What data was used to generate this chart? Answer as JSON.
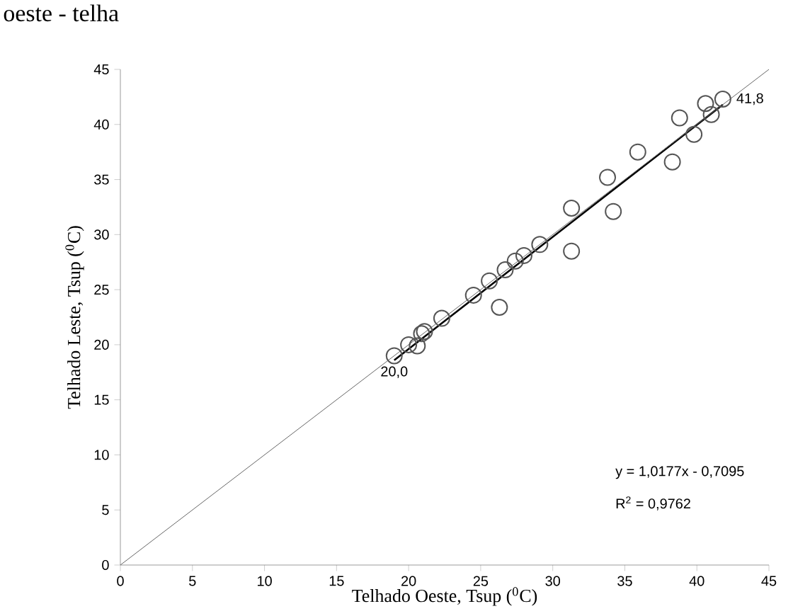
{
  "chart_data": {
    "type": "scatter",
    "title": "oeste - telha",
    "xlabel": "Telhado Oeste, Tsup ($^{0}$C)",
    "ylabel": "Telhado Leste, Tsup ($^{0}$C)",
    "xlim": [
      0,
      45
    ],
    "ylim": [
      0,
      45
    ],
    "xticks": [
      0,
      5,
      10,
      15,
      20,
      25,
      30,
      35,
      40,
      45
    ],
    "yticks": [
      0,
      5,
      10,
      15,
      20,
      25,
      30,
      35,
      40,
      45
    ],
    "grid": false,
    "marker": "circle",
    "series": [
      {
        "color": "#555555",
        "x": [
          19.0,
          20.0,
          20.6,
          20.9,
          21.1,
          22.3,
          24.5,
          25.6,
          26.3,
          26.7,
          27.4,
          28.0,
          29.1,
          31.3,
          31.3,
          33.8,
          34.2,
          35.9,
          38.3,
          38.8,
          39.8,
          40.6,
          41.0,
          41.8
        ],
        "values": [
          19.0,
          20.0,
          19.9,
          21.0,
          21.2,
          22.4,
          24.5,
          25.8,
          23.4,
          26.8,
          27.6,
          28.1,
          29.1,
          32.4,
          28.5,
          35.2,
          32.1,
          37.5,
          36.6,
          40.6,
          39.1,
          41.9,
          40.9,
          42.3
        ]
      },
      {
        "type": "line",
        "color": "#000000",
        "marker": "none",
        "line_style": "solid",
        "x": [
          19.0,
          41.8
        ],
        "values": [
          18.6,
          41.8
        ]
      },
      {
        "type": "line",
        "color": "#666666",
        "marker": "none",
        "line_style": "solid",
        "x": [
          0,
          45
        ],
        "values": [
          0,
          45
        ]
      }
    ],
    "annotations": [
      {
        "text": "20,0",
        "x": 19.0,
        "y": 19.0
      },
      {
        "text": "41,8",
        "x": 41.8,
        "y": 42.3
      },
      "y = 1,0177x - 0,7095",
      "R$^{2}$ = 0,9762"
    ]
  }
}
